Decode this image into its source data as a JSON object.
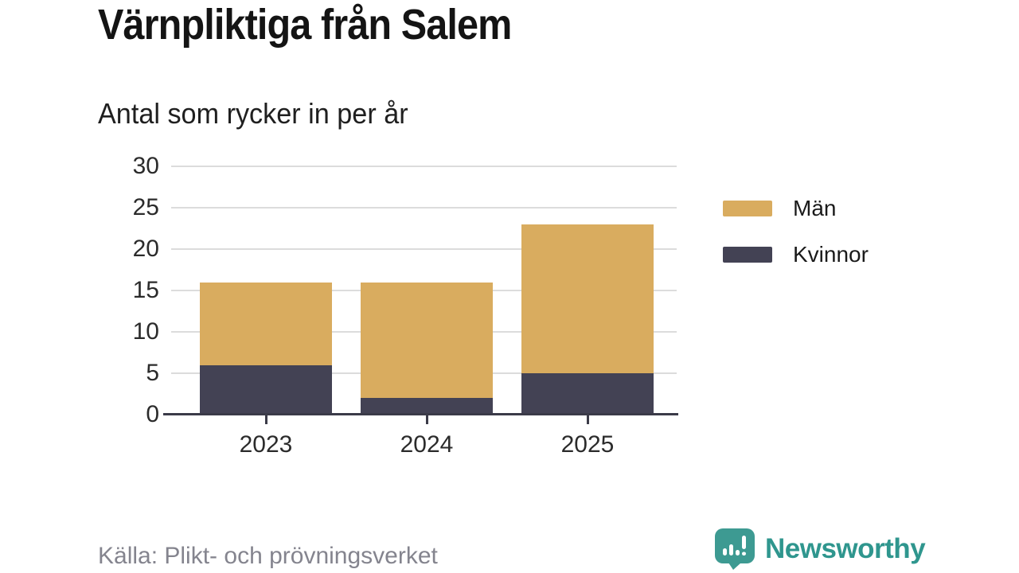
{
  "title": "Värnpliktiga från Salem",
  "subtitle": "Antal som rycker in per år",
  "source": "Källa: Plikt- och prövningsverket",
  "brand": {
    "name": "Newsworthy",
    "icon": "newsworthy-speech-bubble-bar-chart-icon",
    "icon_color": "#3D9A92",
    "wordmark_color": "#2F968E"
  },
  "colors": {
    "men": "#D9AC5F",
    "women": "#434254",
    "gridline": "#DCDCDC",
    "axis": "#3B3B48",
    "title_text": "#141414",
    "tick_text": "#2B2B2B",
    "source_text": "#84848E"
  },
  "legend": {
    "position": "right",
    "items": [
      {
        "label": "Män",
        "color": "#D9AC5F"
      },
      {
        "label": "Kvinnor",
        "color": "#434254"
      }
    ]
  },
  "chart_data": {
    "type": "bar",
    "stacked": true,
    "title": "Värnpliktiga från Salem",
    "subtitle": "Antal som rycker in per år",
    "categories": [
      "2023",
      "2024",
      "2025"
    ],
    "series": [
      {
        "name": "Män",
        "color": "#D9AC5F",
        "values": [
          10,
          14,
          18
        ]
      },
      {
        "name": "Kvinnor",
        "color": "#434254",
        "values": [
          6,
          2,
          5
        ]
      }
    ],
    "stack_order_bottom_to_top": [
      "Kvinnor",
      "Män"
    ],
    "stack_totals": [
      16,
      16,
      23
    ],
    "xlabel": "",
    "ylabel": "",
    "yticks": [
      0,
      5,
      10,
      15,
      20,
      25,
      30
    ],
    "ylim": [
      0,
      30
    ],
    "grid": true,
    "legend_position": "right"
  }
}
